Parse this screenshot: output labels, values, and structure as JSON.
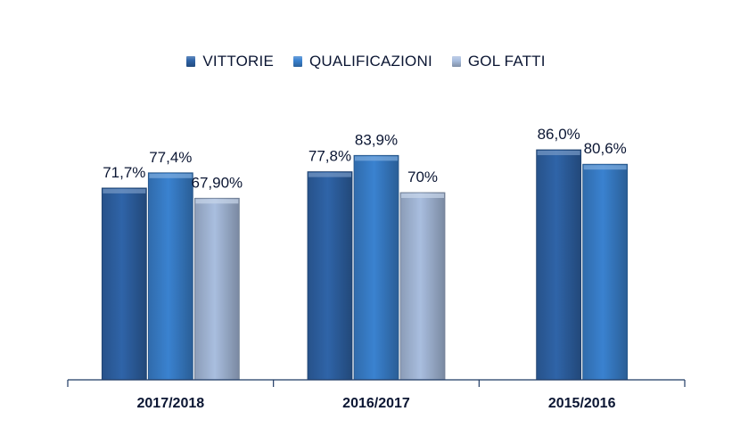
{
  "chart_data": {
    "type": "bar",
    "title": "",
    "xlabel": "",
    "ylabel": "",
    "ylim": [
      0,
      100
    ],
    "grid": false,
    "legend_position": "top",
    "categories": [
      "2017/2018",
      "2016/2017",
      "2015/2016"
    ],
    "series": [
      {
        "name": "VITTORIE",
        "color": "#2f64a8",
        "values": [
          71.7,
          77.8,
          86.0
        ],
        "labels": [
          "71,7%",
          "77,8%",
          "86,0%"
        ]
      },
      {
        "name": "QUALIFICAZIONI",
        "color": "#3a82d0",
        "values": [
          77.4,
          83.9,
          80.6
        ],
        "labels": [
          "77,4%",
          "83,9%",
          "80,6%"
        ]
      },
      {
        "name": "GOL FATTI",
        "color": "#a9bedf",
        "values": [
          67.9,
          70,
          null
        ],
        "labels": [
          "67,90%",
          "70%",
          null
        ]
      }
    ]
  }
}
